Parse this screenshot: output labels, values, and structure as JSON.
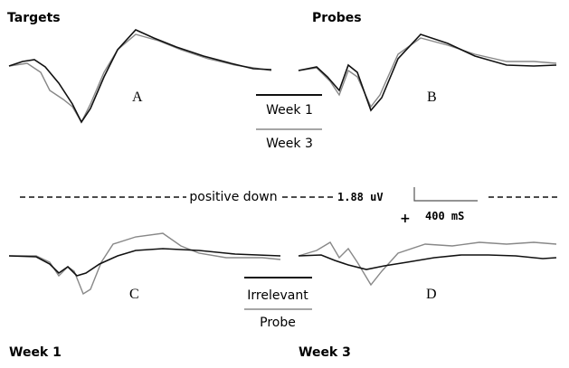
{
  "panels": {
    "targets_title": "Targets",
    "probes_title": "Probes",
    "a": "A",
    "b": "B",
    "c": "C",
    "d": "D"
  },
  "legend_top": {
    "week1": "Week 1",
    "week3": "Week 3"
  },
  "scale": {
    "note": "positive down",
    "amplitude": "1.88 uV",
    "polarity": "+",
    "time": "400 mS"
  },
  "legend_bottom": {
    "irrelevant": "Irrelevant",
    "probe": "Probe"
  },
  "footer": {
    "left": "Week 1",
    "right": "Week 3"
  }
}
